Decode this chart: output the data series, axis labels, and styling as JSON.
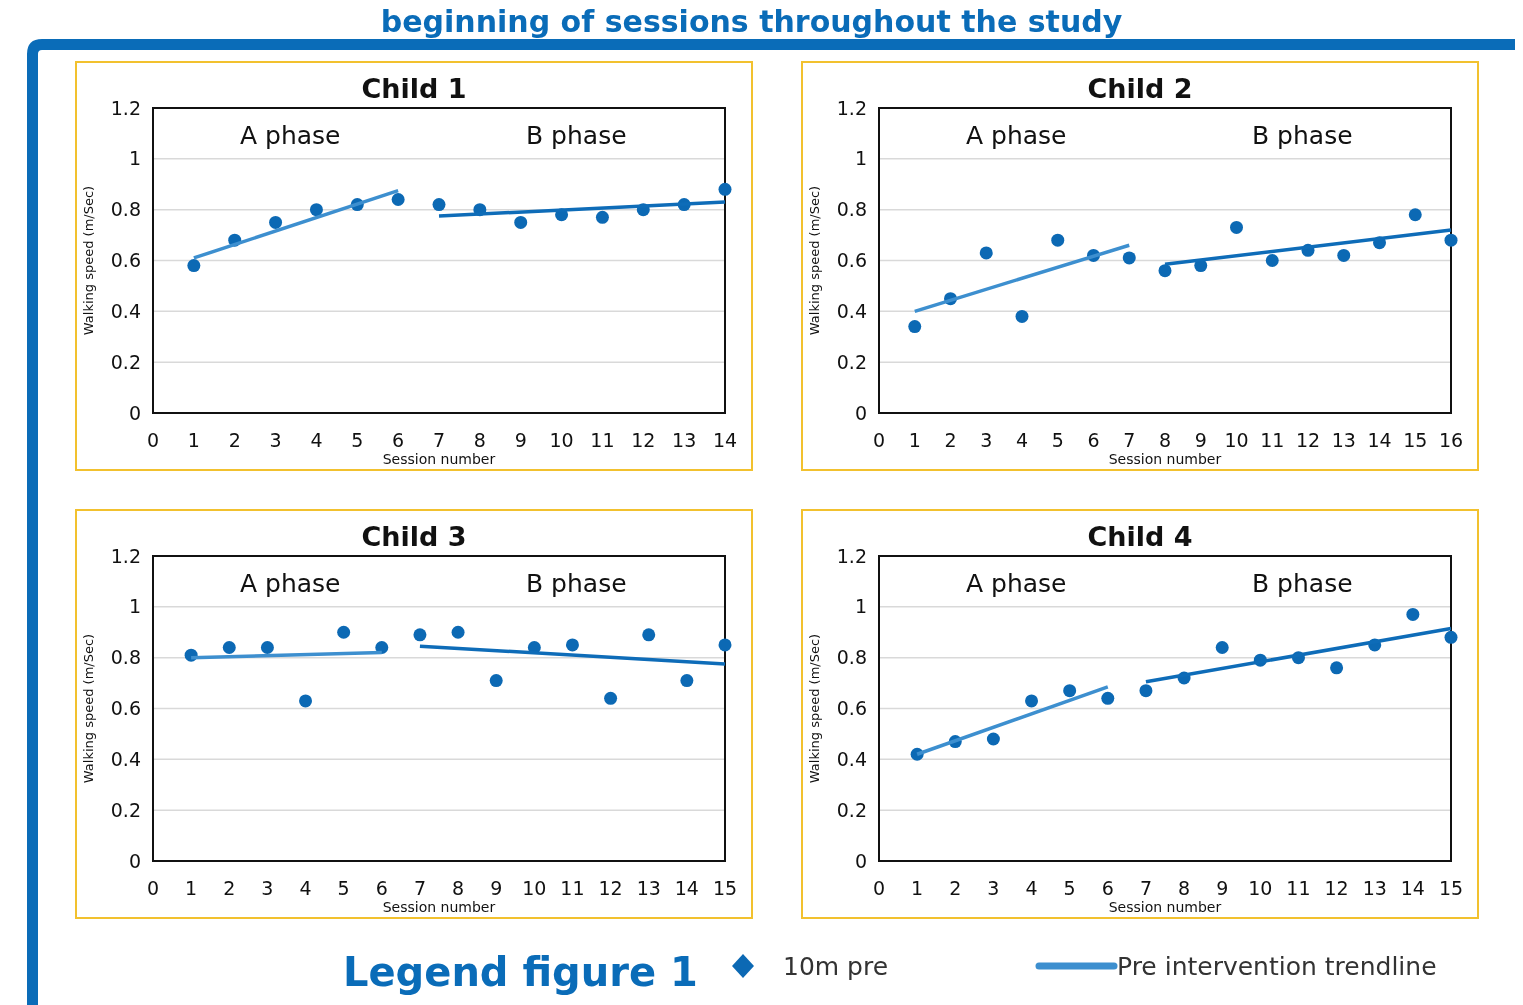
{
  "chart_data": [
    {
      "type": "scatter",
      "title": "Child 1",
      "xlabel": "Session number",
      "ylabel": "Walking speed (m/Sec)",
      "annotations": [
        "A phase",
        "B phase",
        "beginning of sessions throughout the study"
      ],
      "xlim": [
        0,
        14
      ],
      "xticks": [
        0,
        1,
        2,
        3,
        4,
        5,
        6,
        7,
        8,
        9,
        10,
        11,
        12,
        13,
        14
      ],
      "ylim": [
        0,
        1.2
      ],
      "yticks": [
        0,
        0.2,
        0.4,
        0.6,
        0.8,
        1,
        1.2
      ],
      "grid": "y",
      "line_style": "solid",
      "series": [
        {
          "marker": "circle",
          "color": "#0c69b4",
          "x": [
            1,
            2,
            3,
            4,
            5,
            6,
            7,
            8,
            9,
            10,
            11,
            12,
            13,
            14
          ],
          "values": [
            0.58,
            0.68,
            0.75,
            0.8,
            0.82,
            0.84,
            0.82,
            0.8,
            0.75,
            0.78,
            0.77,
            0.8,
            0.82,
            0.88
          ]
        },
        {
          "type": "line",
          "marker": "none",
          "color": "#3d8fcf",
          "x": [
            1,
            6
          ],
          "values": [
            0.61,
            0.875
          ]
        },
        {
          "type": "line",
          "marker": "none",
          "color": "#0e6cb8",
          "x": [
            7,
            14
          ],
          "values": [
            0.775,
            0.83
          ]
        }
      ]
    },
    {
      "type": "scatter",
      "title": "Child 2",
      "xlabel": "Session number",
      "ylabel": "Walking speed (m/Sec)",
      "annotations": [
        "A phase",
        "B phase"
      ],
      "xlim": [
        0,
        16
      ],
      "xticks": [
        0,
        1,
        2,
        3,
        4,
        5,
        6,
        7,
        8,
        9,
        10,
        11,
        12,
        13,
        14,
        15,
        16
      ],
      "ylim": [
        0,
        1.2
      ],
      "yticks": [
        0,
        0.2,
        0.4,
        0.6,
        0.8,
        1,
        1.2
      ],
      "grid": "y",
      "line_style": "solid",
      "series": [
        {
          "marker": "circle",
          "color": "#0c69b4",
          "x": [
            1,
            2,
            3,
            4,
            5,
            6,
            7,
            8,
            9,
            10,
            11,
            12,
            13,
            14,
            15,
            16
          ],
          "values": [
            0.34,
            0.45,
            0.63,
            0.38,
            0.68,
            0.62,
            0.61,
            0.56,
            0.58,
            0.73,
            0.6,
            0.64,
            0.62,
            0.67,
            0.78,
            0.68
          ]
        },
        {
          "type": "line",
          "marker": "none",
          "color": "#3d8fcf",
          "x": [
            1,
            7
          ],
          "values": [
            0.4,
            0.66
          ]
        },
        {
          "type": "line",
          "marker": "none",
          "color": "#0e6cb8",
          "x": [
            8,
            16
          ],
          "values": [
            0.585,
            0.72
          ]
        }
      ]
    },
    {
      "type": "scatter",
      "title": "Child 3",
      "xlabel": "Session number",
      "ylabel": "Walking speed (m/Sec)",
      "annotations": [
        "A phase",
        "B phase"
      ],
      "xlim": [
        0,
        15
      ],
      "xticks": [
        0,
        1,
        2,
        3,
        4,
        5,
        6,
        7,
        8,
        9,
        10,
        11,
        12,
        13,
        14,
        15
      ],
      "ylim": [
        0,
        1.2
      ],
      "yticks": [
        0,
        0.2,
        0.4,
        0.6,
        0.8,
        1,
        1.2
      ],
      "grid": "y",
      "line_style": "solid",
      "series": [
        {
          "marker": "circle",
          "color": "#0c69b4",
          "x": [
            1,
            2,
            3,
            4,
            5,
            6,
            7,
            8,
            9,
            10,
            11,
            12,
            13,
            14,
            15
          ],
          "values": [
            0.81,
            0.84,
            0.84,
            0.63,
            0.9,
            0.84,
            0.89,
            0.9,
            0.71,
            0.84,
            0.85,
            0.64,
            0.89,
            0.71,
            0.85
          ]
        },
        {
          "type": "line",
          "marker": "none",
          "color": "#3d8fcf",
          "x": [
            1,
            6
          ],
          "values": [
            0.8,
            0.82
          ]
        },
        {
          "type": "line",
          "marker": "none",
          "color": "#0e6cb8",
          "x": [
            7,
            15
          ],
          "values": [
            0.845,
            0.775
          ]
        }
      ]
    },
    {
      "type": "scatter",
      "title": "Child 4",
      "xlabel": "Session number",
      "ylabel": "Walking speed (m/Sec)",
      "annotations": [
        "A phase",
        "B phase"
      ],
      "xlim": [
        0,
        15
      ],
      "xticks": [
        0,
        1,
        2,
        3,
        4,
        5,
        6,
        7,
        8,
        9,
        10,
        11,
        12,
        13,
        14,
        15
      ],
      "ylim": [
        0,
        1.2
      ],
      "yticks": [
        0,
        0.2,
        0.4,
        0.6,
        0.8,
        1,
        1.2
      ],
      "grid": "y",
      "line_style": "solid",
      "legend": "bottom",
      "legend_title": "Legend figure 1",
      "series": [
        {
          "name": "10m pre",
          "marker": "circle",
          "color": "#0c69b4",
          "x": [
            1,
            2,
            3,
            4,
            5,
            6,
            7,
            8,
            9,
            10,
            11,
            12,
            13,
            14,
            15
          ],
          "values": [
            0.42,
            0.47,
            0.48,
            0.63,
            0.67,
            0.64,
            0.67,
            0.72,
            0.84,
            0.79,
            0.8,
            0.76,
            0.85,
            0.97,
            0.88
          ]
        },
        {
          "type": "line",
          "marker": "none",
          "name": "Pre intervention trendline",
          "color": "#3d8fcf",
          "x": [
            1,
            6
          ],
          "values": [
            0.42,
            0.685
          ]
        },
        {
          "type": "line",
          "marker": "none",
          "color": "#0e6cb8",
          "x": [
            7,
            15
          ],
          "values": [
            0.705,
            0.915
          ]
        }
      ]
    }
  ]
}
